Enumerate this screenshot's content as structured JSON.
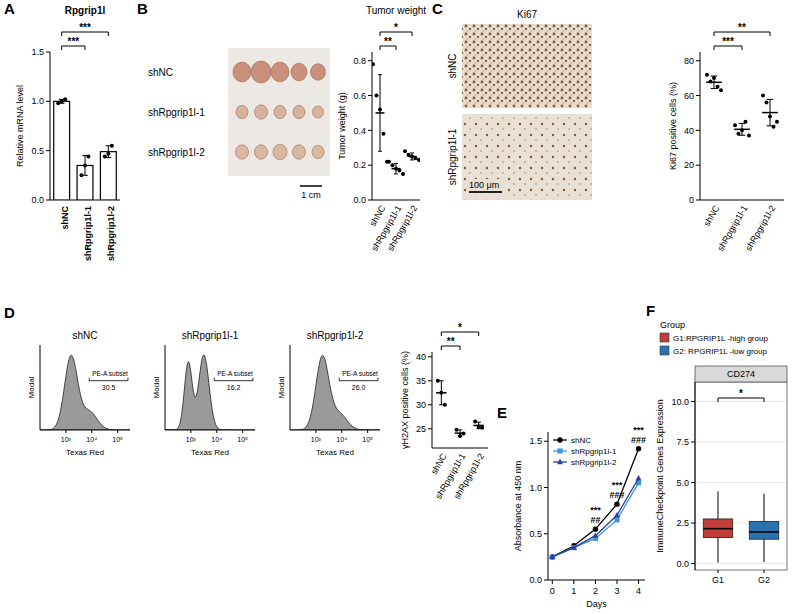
{
  "chart_data": [
    {
      "panel": "A",
      "type": "bar",
      "title": "Rpgrip1l",
      "y_label": "Relative mRNA level",
      "categories": [
        "shNC",
        "shRpgrip1l-1",
        "shRpgrip1l-2"
      ],
      "values": [
        1.0,
        0.35,
        0.49
      ],
      "error": [
        0.02,
        0.1,
        0.06
      ],
      "points": [
        [
          0.98,
          1.0,
          1.02
        ],
        [
          0.25,
          0.35,
          0.44
        ],
        [
          0.44,
          0.47,
          0.55
        ]
      ],
      "color": "#ffffff",
      "ylim": [
        0,
        1.5
      ],
      "yticks": [
        {
          "value": 0,
          "label": "0.0"
        },
        0.5,
        {
          "value": 1,
          "label": "1.0"
        },
        1.5
      ],
      "annotations": [
        {
          "from": 0,
          "to": 1,
          "text": "***"
        },
        {
          "from": 0,
          "to": 2,
          "text": "***"
        }
      ]
    },
    {
      "panel": "B",
      "type": "image",
      "row_labels": [
        "shNC",
        "shRpgrip1l-1",
        "shRpgrip1l-2"
      ],
      "scale_bar": "1 cm"
    },
    {
      "type": "dot",
      "title": "Tumor weight",
      "y_label": "Tumor weight (g)",
      "categories": [
        "shNC",
        "shRpgrip1l-1",
        "shRpgrip1l-2"
      ],
      "values": [
        0.5,
        0.18,
        0.25
      ],
      "error": [
        0.22,
        0.03,
        0.02
      ],
      "points": [
        [
          0.78,
          0.6,
          0.52,
          0.38,
          0.22
        ],
        [
          0.22,
          0.2,
          0.18,
          0.17,
          0.15
        ],
        [
          0.28,
          0.26,
          0.25,
          0.24,
          0.23
        ]
      ],
      "ylim": [
        0,
        0.85
      ],
      "yticks": [
        {
          "value": 0,
          "label": "0.0"
        },
        0.2,
        0.4,
        0.6,
        0.8
      ],
      "annotations": [
        {
          "from": 0,
          "to": 1,
          "text": "**"
        },
        {
          "from": 0,
          "to": 2,
          "text": "*"
        }
      ]
    },
    {
      "panel": "C",
      "type": "image",
      "title": "Ki67",
      "row_labels": [
        "shNC",
        "shRpgrip1l-1"
      ],
      "scale_bar": "100 μm"
    },
    {
      "type": "dot",
      "y_label": "Ki67 positive cells (%)",
      "categories": [
        "shNC",
        "shRpgrip1l-1",
        "shRpgrip1l-2"
      ],
      "values": [
        67.6,
        40.6,
        50.2
      ],
      "error": [
        3.6,
        3.4,
        7.6
      ],
      "points": [
        [
          72,
          68,
          70,
          65,
          63
        ],
        [
          43,
          38,
          40,
          45,
          37
        ],
        [
          60,
          56,
          48,
          42,
          45
        ]
      ],
      "ylim": [
        0,
        85
      ],
      "yticks": [
        0,
        20,
        40,
        60,
        80
      ],
      "annotations": [
        {
          "from": 0,
          "to": 1,
          "text": "***"
        },
        {
          "from": 0,
          "to": 2,
          "text": "**"
        }
      ]
    },
    {
      "panel": "D",
      "type": "histogram_panels",
      "x_label": "Texas Red",
      "y_label": "Modal",
      "log": "x",
      "tick_labels": "x",
      "xlim": [
        100,
        300000
      ],
      "xticks": [
        {
          "value": 1000,
          "label": "10³"
        },
        {
          "value": 10000,
          "label": "10⁴"
        },
        {
          "value": 100000,
          "label": "10⁵"
        }
      ],
      "panels": [
        {
          "title": "shNC",
          "gate_label": "PE-A subset",
          "gate_value": "30.5",
          "gate": [
            8000,
            250000
          ]
        },
        {
          "title": "shRpgrip1l-1",
          "gate_label": "PE-A subset",
          "gate_value": "16.2",
          "gate": [
            8000,
            250000
          ]
        },
        {
          "title": "shRpgrip1l-2",
          "gate_label": "PE-A subset",
          "gate_value": "26.0",
          "gate": [
            8000,
            250000
          ]
        }
      ]
    },
    {
      "type": "dot",
      "y_label": "γH2AX positive cells (%)",
      "categories": [
        "shNC",
        "shRpgrip1l-1",
        "shRpgrip1l-2"
      ],
      "values": [
        32.5,
        24.1,
        25.7
      ],
      "error": [
        2.5,
        0.66,
        0.68
      ],
      "points": [
        [
          35,
          32.5,
          30
        ],
        [
          24.8,
          23.5,
          24
        ],
        [
          26.5,
          25.5,
          25.2
        ]
      ],
      "ylim": [
        21,
        41
      ],
      "yticks": [
        25,
        30,
        35,
        40
      ],
      "annotations": [
        {
          "from": 0,
          "to": 1,
          "text": "**"
        },
        {
          "from": 0,
          "to": 2,
          "text": "*"
        }
      ]
    },
    {
      "panel": "E",
      "type": "line",
      "x_label": "Days",
      "y_label": "Absorbance at 450 nm",
      "x": [
        0,
        1,
        2,
        3,
        4
      ],
      "xlim": [
        -0.2,
        4.3
      ],
      "xticks": [
        0,
        1,
        2,
        3,
        4
      ],
      "ylim": [
        0,
        1.6
      ],
      "yticks": [
        {
          "value": 0,
          "label": "0.0"
        },
        0.5,
        {
          "value": 1,
          "label": "1.0"
        },
        1.5
      ],
      "legend": "upper left",
      "series": [
        {
          "name": "shNC",
          "color": "#000000",
          "marker": "circle",
          "values": [
            0.25,
            0.37,
            0.55,
            0.82,
            1.42
          ]
        },
        {
          "name": "shRpgrip1l-1",
          "color": "#3a9ad9",
          "marker": "square",
          "values": [
            0.25,
            0.35,
            0.45,
            0.65,
            1.05
          ]
        },
        {
          "name": "shRpgrip1l-2",
          "color": "#2b3f9e",
          "marker": "triangle",
          "values": [
            0.25,
            0.35,
            0.48,
            0.7,
            1.1
          ]
        }
      ],
      "annotations": [
        {
          "x": 2,
          "text": "***"
        },
        {
          "x": 2,
          "text": "##"
        },
        {
          "x": 3,
          "text": "***"
        },
        {
          "x": 3,
          "text": "###"
        },
        {
          "x": 4,
          "text": "***"
        },
        {
          "x": 4,
          "text": "###"
        }
      ]
    },
    {
      "panel": "F",
      "type": "box",
      "title": "CD274",
      "y_label": "ImmuneCheckpoint Genes Expression",
      "categories": [
        "G1",
        "G2"
      ],
      "legend": "top",
      "legend_title": "Group",
      "grid": true,
      "ylim": [
        -0.4,
        11.2
      ],
      "yticks": [
        {
          "value": 0,
          "label": "0.0"
        },
        2.5,
        {
          "value": 5,
          "label": "5.0"
        },
        7.5,
        {
          "value": 10,
          "label": "10.0"
        }
      ],
      "series": [
        {
          "name": "G1:RPGRIP1L -high group",
          "color": "#c03d3a",
          "low": 0.05,
          "q1": 1.6,
          "median": 2.15,
          "q3": 2.75,
          "high": 4.45
        },
        {
          "name": "G2: RPGRIP1L -low group",
          "color": "#2b72b0",
          "low": 0.1,
          "q1": 1.5,
          "median": 1.95,
          "q3": 2.6,
          "high": 4.3
        }
      ],
      "annotations": [
        {
          "from": 0,
          "to": 1,
          "text": "*"
        }
      ]
    }
  ]
}
